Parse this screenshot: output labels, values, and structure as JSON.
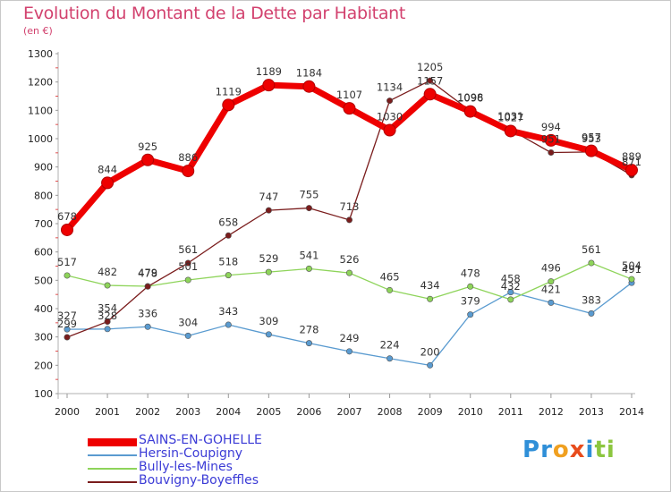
{
  "header": {
    "title": "Evolution du Montant de la Dette par Habitant",
    "unit": "(en €)"
  },
  "logo": {
    "letters": [
      {
        "ch": "P",
        "color": "#2f8fd8"
      },
      {
        "ch": "r",
        "color": "#2f8fd8"
      },
      {
        "ch": "o",
        "color": "#f0a020"
      },
      {
        "ch": "x",
        "color": "#e84c1c"
      },
      {
        "ch": "i",
        "color": "#2f8fd8"
      },
      {
        "ch": "t",
        "color": "#8cc63f"
      },
      {
        "ch": "i",
        "color": "#8cc63f"
      }
    ]
  },
  "chart_data": {
    "type": "line",
    "x": [
      2000,
      2001,
      2002,
      2003,
      2004,
      2005,
      2006,
      2007,
      2008,
      2009,
      2010,
      2011,
      2012,
      2013,
      2014
    ],
    "ylim": [
      100,
      1300
    ],
    "yticks": [
      100,
      200,
      300,
      400,
      500,
      600,
      700,
      800,
      900,
      1000,
      1100,
      1200,
      1300
    ],
    "grid": false,
    "legend": "bottom-left",
    "series": [
      {
        "name": "SAINS-EN-GOHELLE",
        "color": "#ee0000",
        "values": [
          678,
          844,
          925,
          886,
          1119,
          1189,
          1184,
          1107,
          1030,
          1157,
          1096,
          1027,
          994,
          957,
          889
        ],
        "labels": [
          "678",
          "844",
          "925",
          "886",
          "1119",
          "1189",
          "1184",
          "1107",
          "1030",
          "1157",
          "1096",
          "1027",
          "994",
          "957",
          "889"
        ]
      },
      {
        "name": "Hersin-Coupigny",
        "color": "#5a9bd0",
        "values": [
          327,
          328,
          336,
          304,
          343,
          309,
          278,
          249,
          224,
          200,
          379,
          458,
          421,
          383,
          491
        ],
        "labels": [
          "327",
          "328",
          "336",
          "304",
          "343",
          "309",
          "278",
          "249",
          "224",
          "200",
          "379",
          "458",
          "421",
          "383",
          "491"
        ]
      },
      {
        "name": "Bully-les-Mines",
        "color": "#8ed45a",
        "values": [
          517,
          482,
          479,
          501,
          518,
          529,
          541,
          526,
          465,
          434,
          478,
          432,
          496,
          561,
          504
        ],
        "labels": [
          "517",
          "482",
          "479",
          "501",
          "518",
          "529",
          "541",
          "526",
          "465",
          "434",
          "478",
          "432",
          "496",
          "561",
          "504"
        ]
      },
      {
        "name": "Bouvigny-Boyeffles",
        "color": "#7a1c1c",
        "values": [
          299,
          354,
          478,
          561,
          658,
          747,
          755,
          713,
          1134,
          1205,
          1098,
          1031,
          951,
          953,
          871
        ],
        "labels": [
          "299",
          "354",
          "478",
          "561",
          "658",
          "747",
          "755",
          "713",
          "1134",
          "1205",
          "1098",
          "1031",
          "951",
          "953",
          "871"
        ]
      }
    ]
  }
}
